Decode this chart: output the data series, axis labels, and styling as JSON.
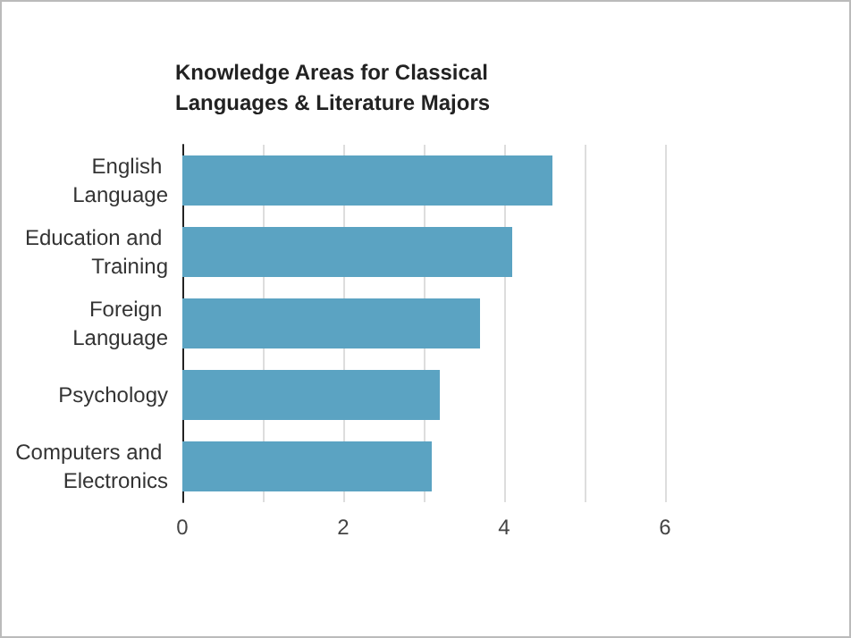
{
  "chart_data": {
    "type": "bar",
    "orientation": "horizontal",
    "title": "Knowledge Areas for Classical Languages & Literature Majors",
    "categories": [
      "English Language",
      "Education and Training",
      "Foreign Language",
      "Psychology",
      "Computers and Electronics"
    ],
    "values": [
      4.6,
      4.1,
      3.7,
      3.2,
      3.1
    ],
    "color": "#5ba3c2",
    "xlim": [
      0,
      6
    ],
    "xticks": [
      0,
      {
        "value": 1,
        "label": null
      },
      2,
      {
        "value": 3,
        "label": null
      },
      4,
      {
        "value": 5,
        "label": null
      },
      6
    ],
    "grid": "x"
  }
}
